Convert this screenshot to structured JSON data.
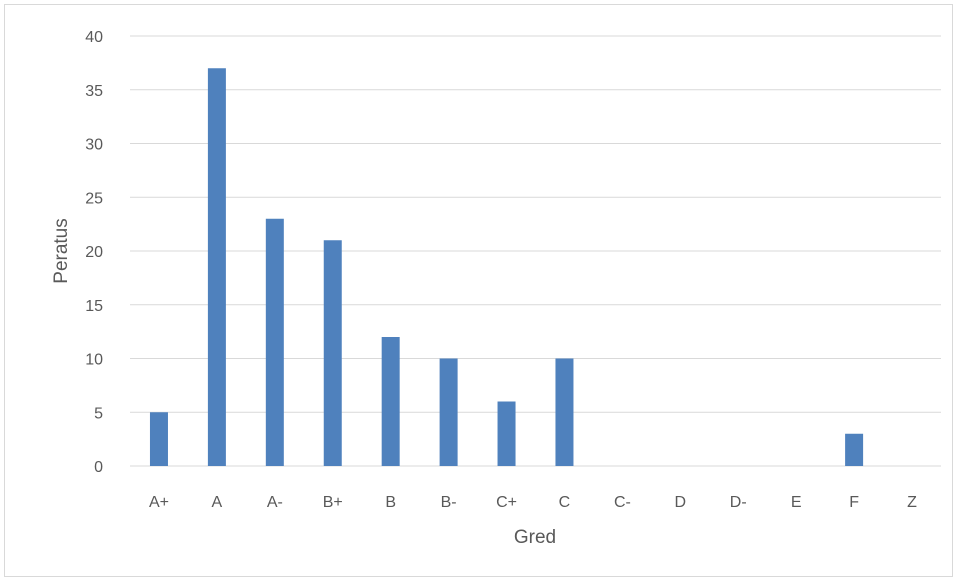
{
  "chart_data": {
    "type": "bar",
    "title": "",
    "xlabel": "Gred",
    "ylabel": "Peratus",
    "categories": [
      "A+",
      "A",
      "A-",
      "B+",
      "B",
      "B-",
      "C+",
      "C",
      "C-",
      "D",
      "D-",
      "E",
      "F",
      "Z"
    ],
    "values": [
      5,
      37,
      23,
      21,
      12,
      10,
      6,
      10,
      0,
      0,
      0,
      0,
      3,
      0
    ],
    "ylim": [
      0,
      40
    ],
    "yticks": [
      0,
      5,
      10,
      15,
      20,
      25,
      30,
      35,
      40
    ],
    "grid": true,
    "legend": "none",
    "bar_color": "#4f81bd",
    "grid_color": "#d9d9d9"
  }
}
